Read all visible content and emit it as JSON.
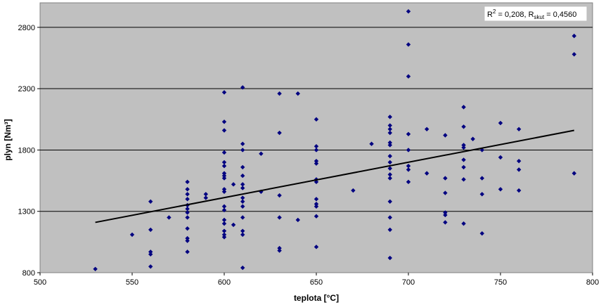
{
  "chart_data": {
    "type": "scatter",
    "xlabel": "teplota [°C]",
    "ylabel": "plyn [Nm³]",
    "xlim": [
      500,
      800
    ],
    "ylim": [
      800,
      3000
    ],
    "xticks": [
      "500",
      "550",
      "600",
      "650",
      "700",
      "750",
      "800"
    ],
    "yticks": [
      "800",
      "1300",
      "1800",
      "2300",
      "2800"
    ],
    "grid": "horizontal",
    "plot_background": "#c0c0c0",
    "marker_color": "#000080",
    "trendline_color": "#000000",
    "annotation": {
      "r2_label": "R",
      "r2_sup": "2",
      "r2_value": " = 0,208, ",
      "r_label": "R",
      "r_sub": "skut",
      "r_value": " = 0,4560"
    },
    "trendline": {
      "x": [
        530,
        790
      ],
      "y": [
        1210,
        1960
      ]
    },
    "points": [
      [
        530,
        830
      ],
      [
        550,
        1110
      ],
      [
        560,
        1380
      ],
      [
        560,
        1150
      ],
      [
        560,
        970
      ],
      [
        560,
        950
      ],
      [
        560,
        850
      ],
      [
        570,
        1250
      ],
      [
        580,
        1540
      ],
      [
        580,
        1480
      ],
      [
        580,
        1440
      ],
      [
        580,
        1400
      ],
      [
        580,
        1350
      ],
      [
        580,
        1320
      ],
      [
        580,
        1290
      ],
      [
        580,
        1250
      ],
      [
        580,
        1160
      ],
      [
        580,
        1080
      ],
      [
        580,
        1060
      ],
      [
        580,
        970
      ],
      [
        590,
        1440
      ],
      [
        590,
        1410
      ],
      [
        600,
        2270
      ],
      [
        600,
        2030
      ],
      [
        600,
        1960
      ],
      [
        600,
        1780
      ],
      [
        600,
        1700
      ],
      [
        600,
        1670
      ],
      [
        600,
        1610
      ],
      [
        600,
        1590
      ],
      [
        600,
        1570
      ],
      [
        600,
        1480
      ],
      [
        600,
        1460
      ],
      [
        600,
        1340
      ],
      [
        600,
        1310
      ],
      [
        600,
        1230
      ],
      [
        600,
        1200
      ],
      [
        600,
        1140
      ],
      [
        600,
        1110
      ],
      [
        600,
        1090
      ],
      [
        605,
        1520
      ],
      [
        610,
        2310
      ],
      [
        610,
        1850
      ],
      [
        610,
        1800
      ],
      [
        610,
        1660
      ],
      [
        610,
        1590
      ],
      [
        610,
        1520
      ],
      [
        610,
        1490
      ],
      [
        610,
        1410
      ],
      [
        610,
        1380
      ],
      [
        610,
        1340
      ],
      [
        610,
        1250
      ],
      [
        610,
        1140
      ],
      [
        610,
        1110
      ],
      [
        610,
        840
      ],
      [
        605,
        1190
      ],
      [
        620,
        1770
      ],
      [
        620,
        1460
      ],
      [
        630,
        2260
      ],
      [
        630,
        1940
      ],
      [
        630,
        1430
      ],
      [
        630,
        1250
      ],
      [
        630,
        1000
      ],
      [
        630,
        980
      ],
      [
        640,
        2260
      ],
      [
        640,
        1230
      ],
      [
        650,
        2050
      ],
      [
        650,
        1830
      ],
      [
        650,
        1800
      ],
      [
        650,
        1710
      ],
      [
        650,
        1690
      ],
      [
        650,
        1560
      ],
      [
        650,
        1540
      ],
      [
        650,
        1400
      ],
      [
        650,
        1360
      ],
      [
        650,
        1340
      ],
      [
        650,
        1260
      ],
      [
        650,
        1010
      ],
      [
        670,
        1470
      ],
      [
        680,
        1850
      ],
      [
        690,
        2070
      ],
      [
        690,
        2000
      ],
      [
        690,
        1970
      ],
      [
        690,
        1940
      ],
      [
        690,
        1860
      ],
      [
        690,
        1840
      ],
      [
        690,
        1750
      ],
      [
        690,
        1700
      ],
      [
        690,
        1650
      ],
      [
        690,
        1600
      ],
      [
        690,
        1570
      ],
      [
        690,
        1380
      ],
      [
        690,
        1250
      ],
      [
        690,
        1150
      ],
      [
        690,
        920
      ],
      [
        700,
        2930
      ],
      [
        700,
        2660
      ],
      [
        700,
        2400
      ],
      [
        700,
        1930
      ],
      [
        700,
        1800
      ],
      [
        700,
        1670
      ],
      [
        700,
        1640
      ],
      [
        700,
        1540
      ],
      [
        710,
        1970
      ],
      [
        710,
        1610
      ],
      [
        720,
        1920
      ],
      [
        720,
        1570
      ],
      [
        720,
        1450
      ],
      [
        720,
        1290
      ],
      [
        720,
        1270
      ],
      [
        720,
        1210
      ],
      [
        730,
        2150
      ],
      [
        730,
        1990
      ],
      [
        730,
        1840
      ],
      [
        730,
        1820
      ],
      [
        730,
        1720
      ],
      [
        730,
        1660
      ],
      [
        730,
        1560
      ],
      [
        730,
        1200
      ],
      [
        735,
        1890
      ],
      [
        740,
        1800
      ],
      [
        740,
        1570
      ],
      [
        740,
        1440
      ],
      [
        740,
        1120
      ],
      [
        750,
        2020
      ],
      [
        750,
        1740
      ],
      [
        750,
        1480
      ],
      [
        760,
        1970
      ],
      [
        760,
        1710
      ],
      [
        760,
        1640
      ],
      [
        760,
        1470
      ],
      [
        790,
        2730
      ],
      [
        790,
        2580
      ],
      [
        790,
        1610
      ]
    ]
  }
}
